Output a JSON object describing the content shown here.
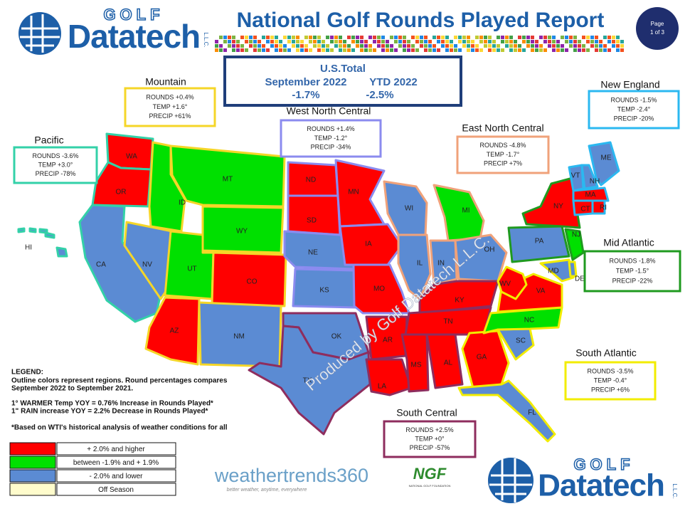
{
  "header": {
    "logo_top": "GOLF",
    "logo": "Datatech",
    "logo_suffix": "L.L.C.",
    "title": "National Golf Rounds Played Report",
    "page_label": "Page",
    "page_number": "1 of 3"
  },
  "us_total": {
    "label": "U.S.Total",
    "period1": "September 2022",
    "period2": "YTD  2022",
    "value1": "-1.7%",
    "value2": "-2.5%"
  },
  "regions": [
    {
      "name": "Pacific",
      "color": "#33d1a8",
      "rounds": "ROUNDS -3.6%",
      "temp": "TEMP +3.0°",
      "precip": "PRECIP -78%"
    },
    {
      "name": "Mountain",
      "color": "#f5d628",
      "rounds": "ROUNDS +0.4%",
      "temp": "TEMP +1.6°",
      "precip": "PRECIP +61%"
    },
    {
      "name": "West North Central",
      "color": "#8b8bef",
      "rounds": "ROUNDS +1.4%",
      "temp": "TEMP  -1.2°",
      "precip": "PRECIP -34%"
    },
    {
      "name": "East North Central",
      "color": "#f0a27a",
      "rounds": "ROUNDS  -4.8%",
      "temp": "TEMP -1.7°",
      "precip": "PRECIP +7%"
    },
    {
      "name": "New England",
      "color": "#2bb8f0",
      "rounds": "ROUNDS  -1.5%",
      "temp": "TEMP -2.4°",
      "precip": "PRECIP -20%"
    },
    {
      "name": "Mid Atlantic",
      "color": "#1f9a1f",
      "rounds": "ROUNDS -1.8%",
      "temp": "TEMP -1.5°",
      "precip": "PRECIP -22%"
    },
    {
      "name": "South Atlantic",
      "color": "#f2ec00",
      "rounds": "ROUNDS -3.5%",
      "temp": "TEMP -0.4°",
      "precip": "PRECIP +6%"
    },
    {
      "name": "South Central",
      "color": "#8e2d5e",
      "rounds": "ROUNDS  +2.5%",
      "temp": "TEMP +0°",
      "precip": "PRECIP -57%"
    }
  ],
  "states": [
    {
      "label": "WA",
      "color": "#ff0000"
    },
    {
      "label": "OR",
      "color": "#ff0000"
    },
    {
      "label": "CA",
      "color": "#5b8bd3"
    },
    {
      "label": "NV",
      "color": "#5b8bd3"
    },
    {
      "label": "ID",
      "color": "#00e000"
    },
    {
      "label": "MT",
      "color": "#00e000"
    },
    {
      "label": "WY",
      "color": "#00e000"
    },
    {
      "label": "UT",
      "color": "#00e000"
    },
    {
      "label": "CO",
      "color": "#ff0000"
    },
    {
      "label": "AZ",
      "color": "#ff0000"
    },
    {
      "label": "NM",
      "color": "#5b8bd3"
    },
    {
      "label": "ND",
      "color": "#ff0000"
    },
    {
      "label": "SD",
      "color": "#ff0000"
    },
    {
      "label": "NE",
      "color": "#5b8bd3"
    },
    {
      "label": "KS",
      "color": "#5b8bd3"
    },
    {
      "label": "OK",
      "color": "#5b8bd3"
    },
    {
      "label": "TX",
      "color": "#5b8bd3"
    },
    {
      "label": "MN",
      "color": "#ff0000"
    },
    {
      "label": "IA",
      "color": "#ff0000"
    },
    {
      "label": "MO",
      "color": "#ff0000"
    },
    {
      "label": "AR",
      "color": "#ff0000"
    },
    {
      "label": "LA",
      "color": "#ff0000"
    },
    {
      "label": "WI",
      "color": "#5b8bd3"
    },
    {
      "label": "IL",
      "color": "#5b8bd3"
    },
    {
      "label": "MI",
      "color": "#00e000"
    },
    {
      "label": "IN",
      "color": "#5b8bd3"
    },
    {
      "label": "OH",
      "color": "#5b8bd3"
    },
    {
      "label": "KY",
      "color": "#ff0000"
    },
    {
      "label": "TN",
      "color": "#ff0000"
    },
    {
      "label": "MS",
      "color": "#ff0000"
    },
    {
      "label": "AL",
      "color": "#ff0000"
    },
    {
      "label": "GA",
      "color": "#ff0000"
    },
    {
      "label": "FL",
      "color": "#5b8bd3"
    },
    {
      "label": "SC",
      "color": "#5b8bd3"
    },
    {
      "label": "NC",
      "color": "#00e000"
    },
    {
      "label": "VA",
      "color": "#ff0000"
    },
    {
      "label": "WV",
      "color": "#ff0000"
    },
    {
      "label": "PA",
      "color": "#5b8bd3"
    },
    {
      "label": "NY",
      "color": "#ff0000"
    },
    {
      "label": "NJ",
      "color": "#00e000"
    },
    {
      "label": "MD",
      "color": "#5b8bd3"
    },
    {
      "label": "DE",
      "color": "#5b8bd3"
    },
    {
      "label": "VT",
      "color": "#5b8bd3"
    },
    {
      "label": "NH",
      "color": "#5b8bd3"
    },
    {
      "label": "ME",
      "color": "#5b8bd3"
    },
    {
      "label": "MA",
      "color": "#ff0000"
    },
    {
      "label": "CT",
      "color": "#ff0000"
    },
    {
      "label": "RI",
      "color": "#ff0000"
    },
    {
      "label": "HI",
      "color": "#5b8bd3"
    }
  ],
  "watermark": "Produced by Golf Datatech L.L.C.",
  "legend": {
    "title": "LEGEND:",
    "description": [
      "Outline colors represent regions. Round percentages compares",
      "September 2022 to September 2021."
    ],
    "notes": [
      "1° WARMER Temp YOY = 0.76% Increase in Rounds Played*",
      "1\" RAIN increase YOY = 2.2% Decrease in Rounds Played*"
    ],
    "footnote": "*Based on WTI's historical analysis of weather conditions for all",
    "items": [
      {
        "color": "#ff0000",
        "label": "+ 2.0% and higher"
      },
      {
        "color": "#00e000",
        "label": "between -1.9% and + 1.9%"
      },
      {
        "color": "#5b8bd3",
        "label": "- 2.0% and lower"
      },
      {
        "color": "#fffccc",
        "label": "Off Season"
      }
    ]
  },
  "footer": {
    "weathertrends": "weathertrends360",
    "weathertrends_tagline": "better weather, anytime, everywhere",
    "ngf": "NGF",
    "ngf_name": "NATIONAL GOLF FOUNDATION"
  }
}
